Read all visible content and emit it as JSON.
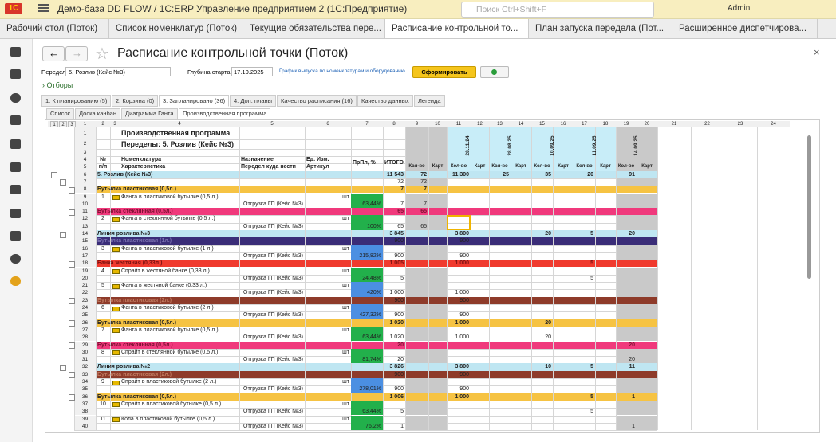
{
  "app_title": "Демо-база DD FLOW / 1C:ERP Управление предприятием 2 (1С:Предприятие)",
  "search": "Поиск Ctrl+Shift+F",
  "user": "Admin",
  "tabs": [
    "Рабочий стол (Поток)",
    "Список номенклатур (Поток)",
    "Текущие обязательства пере...",
    "Расписание контрольной то...",
    "План запуска передела (Пот...",
    "Расширенное диспетчирова..."
  ],
  "form_title": "Расписание контрольной точки (Поток)",
  "controls": {
    "peredel_label": "Передел",
    "peredel_value": "5. Розлив (Кейс №3)",
    "depth_label": "Глубина старта",
    "depth_value": "17.10.2025",
    "link": "График выпуска по номенклатурам и оборудованию",
    "button": "Сформировать"
  },
  "filters": "Отборы",
  "tabs2": [
    "1. К планированию (5)",
    "2. Корзина (0)",
    "3. Запланировано (36)",
    "4. Доп. планы",
    "Качество расписания (16)",
    "Качество данных",
    "Легенда"
  ],
  "subtabs": [
    "Список",
    "Доска канбан",
    "Диаграмма Ганта",
    "Производственная программа"
  ],
  "sheet": {
    "outline_levels": [
      "1",
      "2",
      "3"
    ],
    "col_headers": [
      "1",
      "2",
      "3",
      "4",
      "5",
      "6",
      "7",
      "8",
      "9",
      "10",
      "11",
      "12",
      "13",
      "14",
      "15",
      "16",
      "17",
      "18",
      "19",
      "20",
      "21",
      "22",
      "23",
      "24"
    ],
    "dates": [
      {
        "col": 11,
        "text": "28.11.24"
      },
      {
        "col": 13,
        "text": "28.08.25"
      },
      {
        "col": 15,
        "text": "10.09.25"
      },
      {
        "col": 17,
        "text": "11.09.25"
      },
      {
        "col": 19,
        "text": "14.09.25"
      }
    ],
    "rows": [
      {
        "n": "1",
        "kind": "head",
        "cells": [
          [
            4,
            "Производственная программа"
          ]
        ]
      },
      {
        "n": "2",
        "kind": "head",
        "cells": [
          [
            4,
            "Переделы: 5. Розлив (Кейс №3)"
          ]
        ]
      },
      {
        "n": "3",
        "kind": "head",
        "cells": []
      },
      {
        "n": "4",
        "kind": "head",
        "cells": [
          [
            2,
            "№"
          ],
          [
            4,
            "Номенклатура"
          ],
          [
            5,
            "Назначение"
          ],
          [
            6,
            "Ед. Изм."
          ],
          [
            7,
            "ПрПл, %"
          ],
          [
            8,
            "ИТОГО"
          ]
        ]
      },
      {
        "n": "5",
        "kind": "head",
        "cells": [
          [
            2,
            "п/п"
          ],
          [
            4,
            "Характеристика"
          ],
          [
            5,
            "Передел куда нести"
          ],
          [
            6,
            "Артикул"
          ],
          [
            9,
            "Кол-во"
          ],
          [
            10,
            "Карт"
          ],
          [
            11,
            "Кол-во"
          ],
          [
            12,
            "Карт"
          ],
          [
            13,
            "Кол-во"
          ],
          [
            14,
            "Карт"
          ],
          [
            15,
            "Кол-во"
          ],
          [
            16,
            "Карт"
          ],
          [
            17,
            "Кол-во"
          ],
          [
            18,
            "Карт"
          ],
          [
            19,
            "Кол-во"
          ],
          [
            20,
            "Карт"
          ]
        ]
      },
      {
        "n": "6",
        "kind": "total",
        "cells": [
          [
            2,
            "5. Розлив (Кейс №3)"
          ],
          [
            8,
            "11 543"
          ],
          [
            9,
            "72"
          ],
          [
            11,
            "11 300"
          ],
          [
            13,
            "25"
          ],
          [
            15,
            "35"
          ],
          [
            17,
            "20"
          ],
          [
            19,
            "91"
          ]
        ]
      },
      {
        "n": "7",
        "kind": "sub",
        "cells": [
          [
            8,
            "72"
          ],
          [
            9,
            "72"
          ]
        ]
      },
      {
        "n": "8",
        "kind": "orange",
        "cells": [
          [
            2,
            "Бутылка пластиковая (0,5л.)"
          ],
          [
            8,
            "7"
          ],
          [
            9,
            "7"
          ]
        ]
      },
      {
        "n": "9",
        "kind": "item",
        "cells": [
          [
            2,
            "1"
          ],
          [
            4,
            "Фанта в пластиковой бутылке (0,5 л.)"
          ],
          [
            6,
            "шт"
          ]
        ]
      },
      {
        "n": "10",
        "kind": "dest",
        "fill": "green",
        "cells": [
          [
            5,
            "Отгрузка ГП (Кейс №3)"
          ],
          [
            7,
            "63,44%"
          ],
          [
            8,
            "7"
          ],
          [
            9,
            "7"
          ]
        ]
      },
      {
        "n": "11",
        "kind": "pink",
        "cells": [
          [
            2,
            "Бутылка стеклянная (0,5л.)"
          ],
          [
            8,
            "65"
          ],
          [
            9,
            "65"
          ]
        ]
      },
      {
        "n": "12",
        "kind": "item",
        "cells": [
          [
            2,
            "2"
          ],
          [
            4,
            "Фанта в стеклянной бутылке (0,5 л.)"
          ],
          [
            6,
            "шт"
          ]
        ]
      },
      {
        "n": "13",
        "kind": "dest",
        "fill": "green",
        "cells": [
          [
            5,
            "Отгрузка ГП (Кейс №3)"
          ],
          [
            7,
            "100%"
          ],
          [
            8,
            "65"
          ],
          [
            9,
            "65"
          ]
        ]
      },
      {
        "n": "14",
        "kind": "line",
        "cells": [
          [
            2,
            "Линия розлива №3"
          ],
          [
            8,
            "3 845"
          ],
          [
            11,
            "3 800"
          ],
          [
            15,
            "20"
          ],
          [
            17,
            "5"
          ],
          [
            19,
            "20"
          ]
        ]
      },
      {
        "n": "15",
        "kind": "navy",
        "cells": [
          [
            2,
            "Бутылка пластиковая (1л.)"
          ],
          [
            8,
            "900"
          ],
          [
            11,
            "900"
          ]
        ]
      },
      {
        "n": "16",
        "kind": "item",
        "cells": [
          [
            2,
            "3"
          ],
          [
            4,
            "Фанта в пластиковой бутылке (1 л.)"
          ],
          [
            6,
            "шт"
          ]
        ]
      },
      {
        "n": "17",
        "kind": "dest",
        "fill": "blue",
        "cells": [
          [
            5,
            "Отгрузка ГП (Кейс №3)"
          ],
          [
            7,
            "215,82%"
          ],
          [
            8,
            "900"
          ],
          [
            11,
            "900"
          ]
        ]
      },
      {
        "n": "18",
        "kind": "red",
        "cells": [
          [
            2,
            "Банка жестяная (0,33л.)"
          ],
          [
            8,
            "1 005"
          ],
          [
            11,
            "1 000"
          ],
          [
            17,
            "5"
          ]
        ]
      },
      {
        "n": "19",
        "kind": "item",
        "cells": [
          [
            2,
            "4"
          ],
          [
            4,
            "Спрайт в жестяной банке (0,33 л.)"
          ],
          [
            6,
            "шт"
          ]
        ]
      },
      {
        "n": "20",
        "kind": "dest",
        "fill": "green",
        "cells": [
          [
            5,
            "Отгрузка ГП (Кейс №3)"
          ],
          [
            7,
            "24,48%"
          ],
          [
            8,
            "5"
          ],
          [
            17,
            "5"
          ]
        ]
      },
      {
        "n": "21",
        "kind": "item",
        "cells": [
          [
            2,
            "5"
          ],
          [
            4,
            "Фанта в жестяной банке (0,33 л.)"
          ],
          [
            6,
            "шт"
          ]
        ]
      },
      {
        "n": "22",
        "kind": "dest",
        "fill": "blue",
        "cells": [
          [
            5,
            "Отгрузка ГП (Кейс №3)"
          ],
          [
            7,
            "420%"
          ],
          [
            8,
            "1 000"
          ],
          [
            11,
            "1 000"
          ]
        ]
      },
      {
        "n": "23",
        "kind": "brown",
        "cells": [
          [
            2,
            "Бутылка пластиковая (2л.)"
          ],
          [
            8,
            "900"
          ],
          [
            11,
            "900"
          ]
        ]
      },
      {
        "n": "24",
        "kind": "item",
        "cells": [
          [
            2,
            "6"
          ],
          [
            4,
            "Фанта в пластиковой бутылке (2 л.)"
          ],
          [
            6,
            "шт"
          ]
        ]
      },
      {
        "n": "25",
        "kind": "dest",
        "fill": "blue",
        "cells": [
          [
            5,
            "Отгрузка ГП (Кейс №3)"
          ],
          [
            7,
            "427,32%"
          ],
          [
            8,
            "900"
          ],
          [
            11,
            "900"
          ]
        ]
      },
      {
        "n": "26",
        "kind": "orange",
        "cells": [
          [
            2,
            "Бутылка пластиковая (0,5л.)"
          ],
          [
            8,
            "1 020"
          ],
          [
            11,
            "1 000"
          ],
          [
            15,
            "20"
          ]
        ]
      },
      {
        "n": "27",
        "kind": "item",
        "cells": [
          [
            2,
            "7"
          ],
          [
            4,
            "Фанта в пластиковой бутылке (0,5 л.)"
          ],
          [
            6,
            "шт"
          ]
        ]
      },
      {
        "n": "28",
        "kind": "dest",
        "fill": "green",
        "cells": [
          [
            5,
            "Отгрузка ГП (Кейс №3)"
          ],
          [
            7,
            "63,44%"
          ],
          [
            8,
            "1 020"
          ],
          [
            11,
            "1 000"
          ],
          [
            15,
            "20"
          ]
        ]
      },
      {
        "n": "29",
        "kind": "pink",
        "cells": [
          [
            2,
            "Бутылка стеклянная (0,5л.)"
          ],
          [
            8,
            "20"
          ],
          [
            19,
            "20"
          ]
        ]
      },
      {
        "n": "30",
        "kind": "item",
        "cells": [
          [
            2,
            "8"
          ],
          [
            4,
            "Спрайт в стеклянной бутылке (0,5 л.)"
          ],
          [
            6,
            "шт"
          ]
        ]
      },
      {
        "n": "31",
        "kind": "dest",
        "fill": "green",
        "cells": [
          [
            5,
            "Отгрузка ГП (Кейс №3)"
          ],
          [
            7,
            "81,74%"
          ],
          [
            8,
            "20"
          ],
          [
            19,
            "20"
          ]
        ]
      },
      {
        "n": "32",
        "kind": "line",
        "cells": [
          [
            2,
            "Линия розлива №2"
          ],
          [
            8,
            "3 826"
          ],
          [
            11,
            "3 800"
          ],
          [
            15,
            "10"
          ],
          [
            17,
            "5"
          ],
          [
            19,
            "11"
          ]
        ]
      },
      {
        "n": "33",
        "kind": "brown",
        "cells": [
          [
            2,
            "Бутылка пластиковая (2л.)"
          ],
          [
            8,
            "900"
          ],
          [
            11,
            "900"
          ]
        ]
      },
      {
        "n": "34",
        "kind": "item",
        "cells": [
          [
            2,
            "9"
          ],
          [
            4,
            "Спрайт в пластиковой бутылке (2 л.)"
          ],
          [
            6,
            "шт"
          ]
        ]
      },
      {
        "n": "35",
        "kind": "dest",
        "fill": "blue",
        "cells": [
          [
            5,
            "Отгрузка ГП (Кейс №3)"
          ],
          [
            7,
            "278,01%"
          ],
          [
            8,
            "900"
          ],
          [
            11,
            "900"
          ]
        ]
      },
      {
        "n": "36",
        "kind": "orange",
        "cells": [
          [
            2,
            "Бутылка пластиковая (0,5л.)"
          ],
          [
            8,
            "1 006"
          ],
          [
            11,
            "1 000"
          ],
          [
            17,
            "5"
          ],
          [
            19,
            "1"
          ]
        ]
      },
      {
        "n": "37",
        "kind": "item",
        "cells": [
          [
            2,
            "10"
          ],
          [
            4,
            "Спрайт в пластиковой бутылке (0,5 л.)"
          ],
          [
            6,
            "шт"
          ]
        ]
      },
      {
        "n": "38",
        "kind": "dest",
        "fill": "green",
        "cells": [
          [
            5,
            "Отгрузка ГП (Кейс №3)"
          ],
          [
            7,
            "63,44%"
          ],
          [
            8,
            "5"
          ],
          [
            17,
            "5"
          ]
        ]
      },
      {
        "n": "39",
        "kind": "item",
        "cells": [
          [
            2,
            "11"
          ],
          [
            4,
            "Кола в пластиковой бутылке (0,5 л.)"
          ],
          [
            6,
            "шт"
          ]
        ]
      },
      {
        "n": "40",
        "kind": "dest",
        "fill": "green",
        "cells": [
          [
            5,
            "Отгрузка ГП (Кейс №3)"
          ],
          [
            7,
            "76,2%"
          ],
          [
            8,
            "1"
          ],
          [
            19,
            "1"
          ]
        ]
      }
    ]
  }
}
